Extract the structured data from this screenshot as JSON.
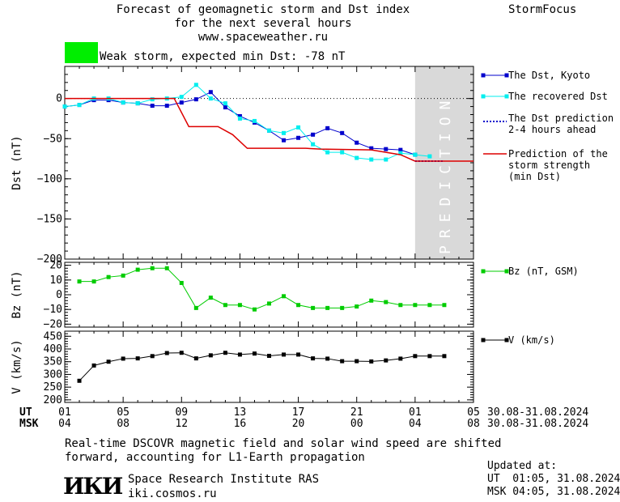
{
  "header": {
    "title_lines": [
      "Forecast of geomagnetic storm and Dst index",
      "for the next several hours",
      "www.spaceweather.ru"
    ],
    "brand": "StormFocus",
    "alert_color": "#00ee00",
    "alert_text": "Weak storm, expected min Dst: -78 nT"
  },
  "chart_data": [
    {
      "type": "line",
      "ylabel": "Dst (nT)",
      "ylim": [
        -200,
        40
      ],
      "yticks": [
        0,
        -50,
        -100,
        -150,
        -200
      ],
      "xlim": [
        0,
        28
      ],
      "prediction_region": [
        24,
        28
      ],
      "prediction_label": "PREDICTION",
      "series": [
        {
          "name": "The Dst, Kyoto",
          "color": "#0000cc",
          "marker": "square",
          "x": [
            0,
            1,
            2,
            3,
            4,
            5,
            6,
            7,
            8,
            9,
            10,
            11,
            12,
            13,
            14,
            15,
            16,
            17,
            18,
            19,
            20,
            21,
            22,
            23,
            24
          ],
          "y": [
            -10,
            -8,
            -2,
            -2,
            -5,
            -6,
            -9,
            -9,
            -5,
            -1,
            8,
            -11,
            -22,
            -30,
            -40,
            -52,
            -49,
            -45,
            -37,
            -43,
            -55,
            -62,
            -63,
            -64,
            -70
          ]
        },
        {
          "name": "The recovered Dst",
          "color": "#00eeee",
          "marker": "square",
          "x": [
            0,
            1,
            2,
            3,
            4,
            5,
            6,
            7,
            8,
            9,
            10,
            11,
            12,
            13,
            14,
            15,
            16,
            17,
            18,
            19,
            20,
            21,
            22,
            23,
            24,
            25
          ],
          "y": [
            -10,
            -8,
            0,
            0,
            -5,
            -6,
            -1,
            0,
            2,
            17,
            0,
            -6,
            -25,
            -28,
            -40,
            -43,
            -36,
            -57,
            -67,
            -67,
            -74,
            -76,
            -76,
            -68,
            -70,
            -72
          ]
        },
        {
          "name": "The Dst prediction",
          "name2": "2-4 hours ahead",
          "color": "#0000cc",
          "style": "dotted",
          "x": [
            24,
            25,
            26
          ],
          "y": [
            -78,
            -78,
            -78
          ]
        },
        {
          "name": "Prediction of the",
          "name2": "storm strength",
          "name3": "(min Dst)",
          "color": "#dd0000",
          "style": "step",
          "x": [
            0,
            7.5,
            8.5,
            10.5,
            11.5,
            12.5,
            13.0,
            14.5,
            16.5,
            17.5,
            21.0,
            23.0,
            24.0,
            28.0
          ],
          "y": [
            0,
            0,
            -35,
            -35,
            -45,
            -62,
            -62,
            -62,
            -62,
            -63,
            -64,
            -70,
            -78,
            -78
          ]
        }
      ]
    },
    {
      "type": "line",
      "ylabel": "Bz (nT)",
      "ylim": [
        -22,
        22
      ],
      "yticks": [
        20,
        10,
        0,
        -10,
        -20
      ],
      "xlim": [
        0,
        28
      ],
      "series": [
        {
          "name": "Bz (nT, GSM)",
          "color": "#00cc00",
          "marker": "square",
          "x": [
            1,
            2,
            3,
            4,
            5,
            6,
            7,
            8,
            9,
            10,
            11,
            12,
            13,
            14,
            15,
            16,
            17,
            18,
            19,
            20,
            21,
            22,
            23,
            24,
            25,
            26
          ],
          "y": [
            9,
            9,
            12,
            13,
            17,
            18,
            18,
            8,
            -9,
            -2,
            -7,
            -7,
            -10,
            -6,
            -1,
            -7,
            -9,
            -9,
            -9,
            -8,
            -4,
            -5,
            -7,
            -7,
            -7,
            -7
          ]
        }
      ]
    },
    {
      "type": "line",
      "ylabel": "V (km/s)",
      "ylim": [
        190,
        470
      ],
      "yticks": [
        450,
        400,
        350,
        300,
        250,
        200
      ],
      "yticks_minor": [
        450,
        400,
        350,
        300,
        250,
        200
      ],
      "xlim": [
        0,
        28
      ],
      "series": [
        {
          "name": "V (km/s)",
          "color": "#000000",
          "marker": "square",
          "x": [
            1,
            2,
            3,
            4,
            5,
            6,
            7,
            8,
            9,
            10,
            11,
            12,
            13,
            14,
            15,
            16,
            17,
            18,
            19,
            20,
            21,
            22,
            23,
            24,
            25,
            26
          ],
          "y": [
            275,
            335,
            350,
            362,
            363,
            372,
            384,
            385,
            363,
            375,
            385,
            378,
            382,
            373,
            378,
            378,
            363,
            362,
            352,
            352,
            351,
            355,
            362,
            372,
            372,
            372
          ]
        }
      ]
    }
  ],
  "xaxis": {
    "row_labels": [
      "UT",
      "MSK"
    ],
    "ticks": [
      0,
      4,
      8,
      12,
      16,
      20,
      24,
      28
    ],
    "ut_labels": [
      "01",
      "05",
      "09",
      "13",
      "17",
      "21",
      "01",
      "05"
    ],
    "msk_labels": [
      "04",
      "08",
      "12",
      "16",
      "20",
      "00",
      "04",
      "08"
    ],
    "date_range_ut": "30.08-31.08.2024",
    "date_range_msk": "30.08-31.08.2024"
  },
  "footer": {
    "note_lines": [
      "Real-time DSCOVR magnetic field and solar wind speed are shifted",
      "forward, accounting for L1-Earth propagation"
    ],
    "logo": "ИКИ",
    "institute": "Space Research Institute RAS",
    "site": "iki.cosmos.ru",
    "updated_label": "Updated at:",
    "updated_ut": "UT  01:05, 31.08.2024",
    "updated_msk": "MSK 04:05, 31.08.2024"
  }
}
